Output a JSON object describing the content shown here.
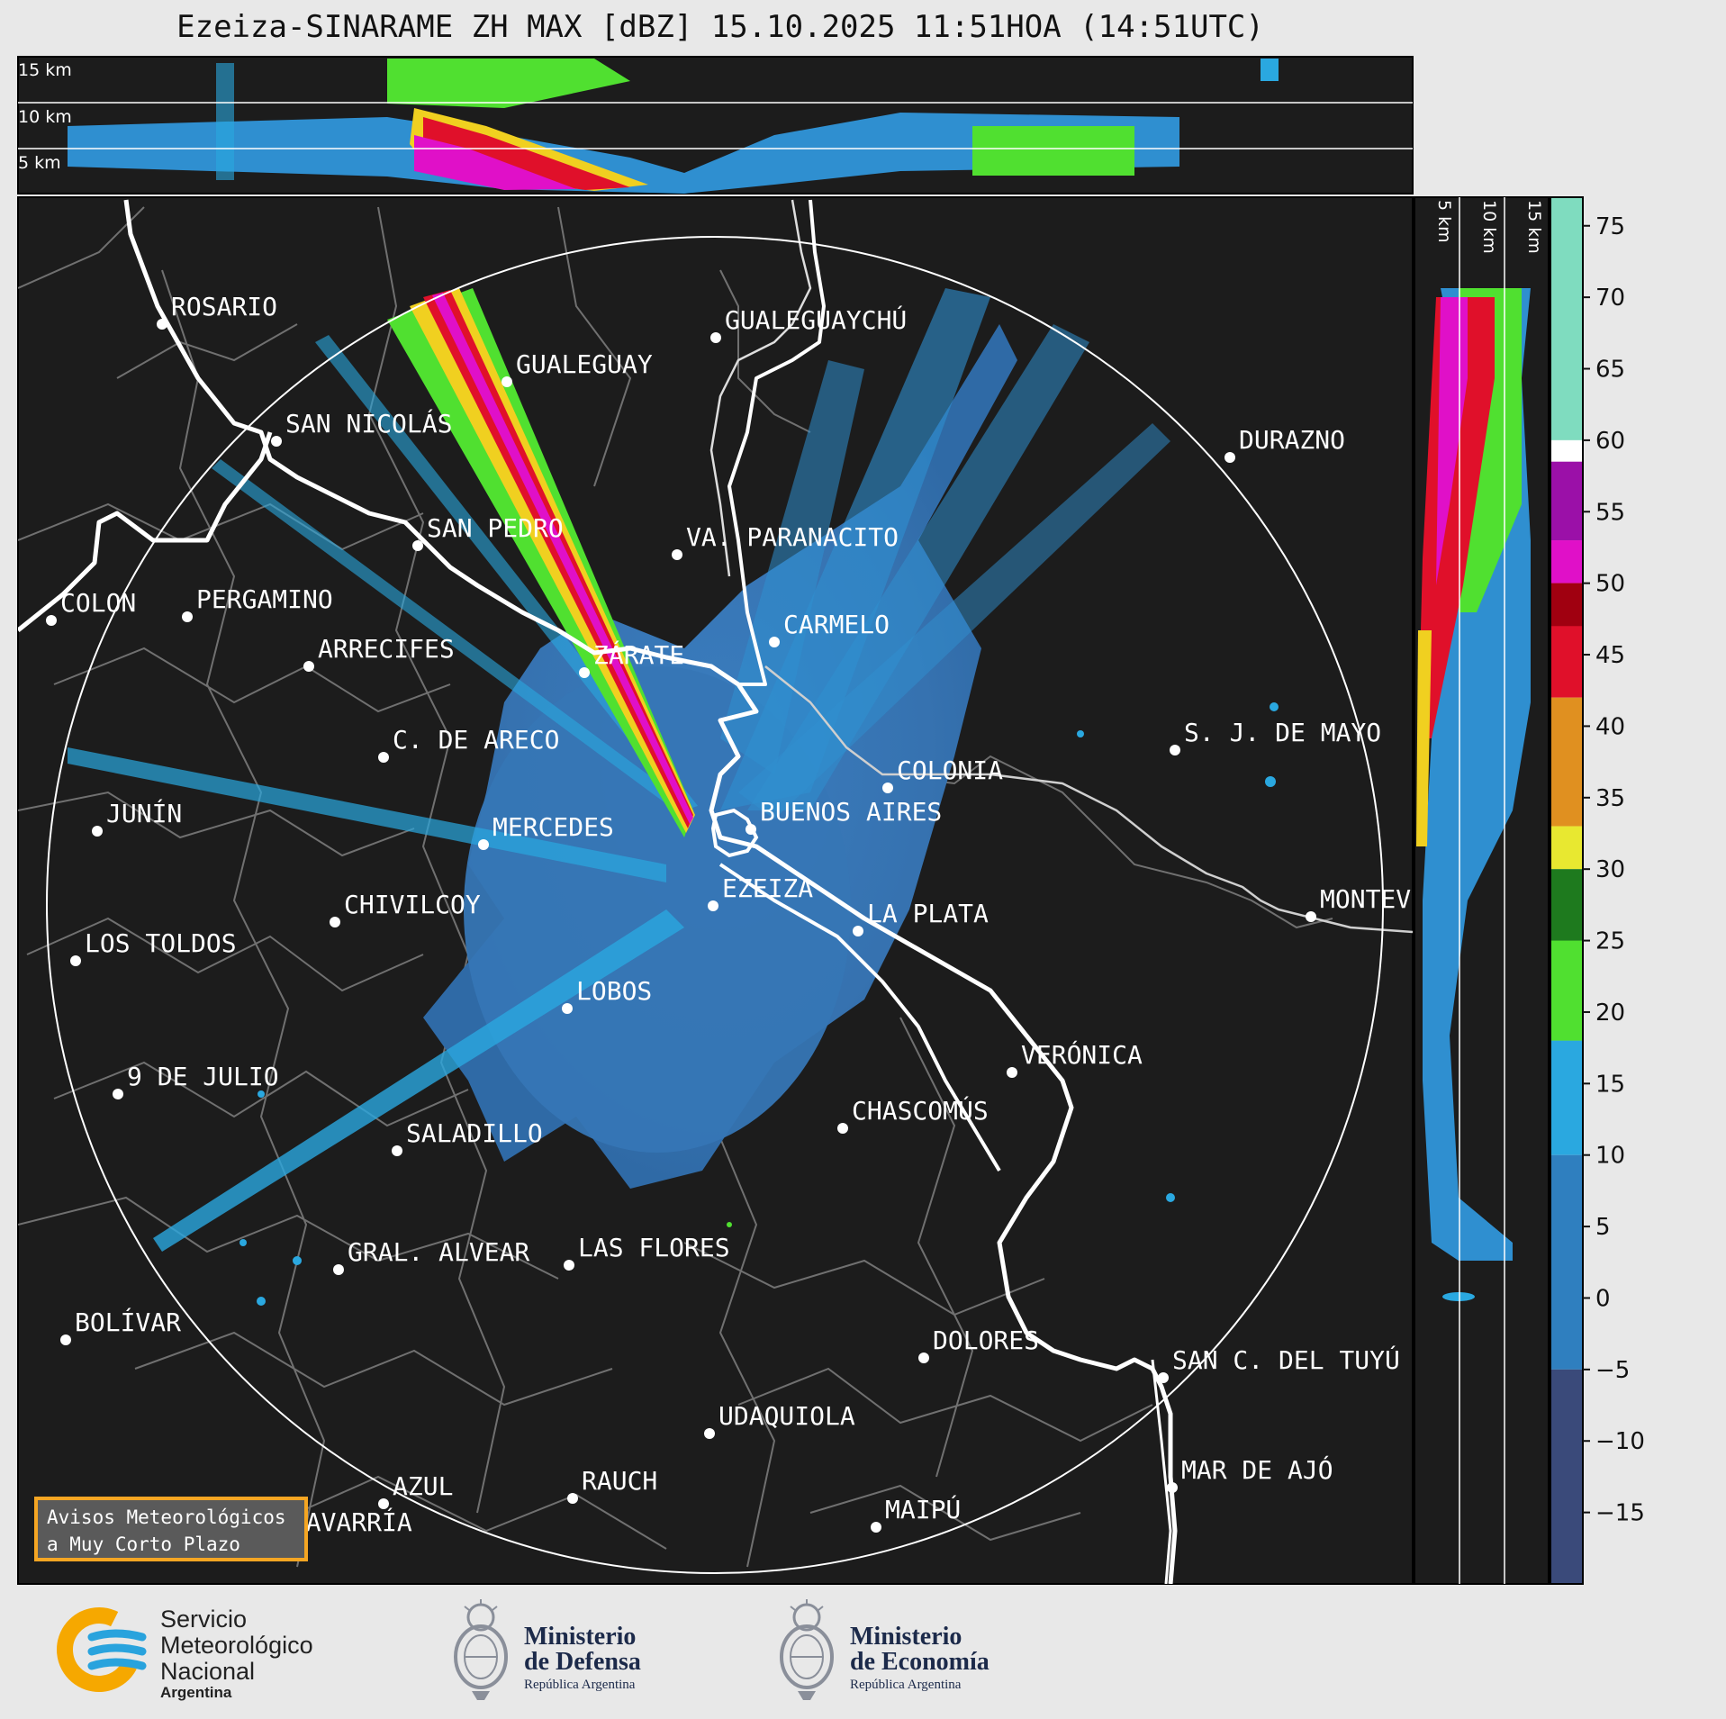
{
  "title": "Ezeiza-SINARAME ZH MAX [dBZ] 15.10.2025 11:51HOA (14:51UTC)",
  "top_panel": {
    "altitude_labels": [
      "15 km",
      "10 km",
      "5 km"
    ]
  },
  "side_panel": {
    "altitude_labels": [
      "5 km",
      "10 km",
      "15 km"
    ]
  },
  "colorbar": {
    "unit": "dBZ",
    "ticks": [
      "75",
      "70",
      "65",
      "60",
      "55",
      "50",
      "45",
      "40",
      "35",
      "30",
      "25",
      "20",
      "15",
      "10",
      "5",
      "0",
      "−5",
      "−10",
      "−15"
    ],
    "range": [
      -20,
      77
    ],
    "colors": {
      "light_teal": "#7fdcbf",
      "white": "#ffffff",
      "purple": "#9b10a8",
      "magenta": "#e010c8",
      "red": "#e0102a",
      "dark_red": "#a00010",
      "orange": "#e09020",
      "yellow": "#e8e830",
      "dark_green": "#1e7a1e",
      "green": "#50e030",
      "light_blue": "#2aa8e0",
      "blue": "#2f7fbf",
      "dark_blue": "#3a4a7a"
    }
  },
  "map": {
    "background": "#1c1c1c",
    "radar_site": "EZEIZA",
    "cities": [
      {
        "name": "ROSARIO"
      },
      {
        "name": "GUALEGUAYCHÚ"
      },
      {
        "name": "GUALEGUAY"
      },
      {
        "name": "SAN NICOLÁS"
      },
      {
        "name": "DURAZNO"
      },
      {
        "name": "SAN PEDRO"
      },
      {
        "name": "VA. PARANACITO"
      },
      {
        "name": "COLON"
      },
      {
        "name": "PERGAMINO"
      },
      {
        "name": "CARMELO"
      },
      {
        "name": "ARRECIFES"
      },
      {
        "name": "ZÁRATE"
      },
      {
        "name": "S. J. DE MAYO"
      },
      {
        "name": "C. DE ARECO"
      },
      {
        "name": "COLONIA"
      },
      {
        "name": "JUNÍN"
      },
      {
        "name": "BUENOS AIRES"
      },
      {
        "name": "MERCEDES"
      },
      {
        "name": "EZEIZA"
      },
      {
        "name": "MONTEVIDEO"
      },
      {
        "name": "CHIVILCOY"
      },
      {
        "name": "LA PLATA"
      },
      {
        "name": "LOS TOLDOS"
      },
      {
        "name": "LOBOS"
      },
      {
        "name": "VERÓNICA"
      },
      {
        "name": "9 DE JULIO"
      },
      {
        "name": "CHASCOMÚS"
      },
      {
        "name": "SALADILLO"
      },
      {
        "name": "GRAL. ALVEAR"
      },
      {
        "name": "LAS FLORES"
      },
      {
        "name": "BOLÍVAR"
      },
      {
        "name": "DOLORES"
      },
      {
        "name": "SAN C. DEL TUYÚ"
      },
      {
        "name": "UDAQUIOLA"
      },
      {
        "name": "MAR DE AJÓ"
      },
      {
        "name": "AZUL"
      },
      {
        "name": "RAUCH"
      },
      {
        "name": "MAIPÚ"
      },
      {
        "name": "OLAVARRÍA"
      }
    ]
  },
  "warning_box": {
    "line1": "Avisos Meteorológicos",
    "line2": "a Muy Corto Plazo"
  },
  "logos": {
    "smn": {
      "line1": "Servicio",
      "line2": "Meteorológico",
      "line3": "Nacional",
      "line4": "Argentina"
    },
    "defensa": {
      "line1": "Ministerio",
      "line2": "de Defensa",
      "line3": "República Argentina"
    },
    "economia": {
      "line1": "Ministerio",
      "line2": "de Economía",
      "line3": "República Argentina"
    }
  }
}
